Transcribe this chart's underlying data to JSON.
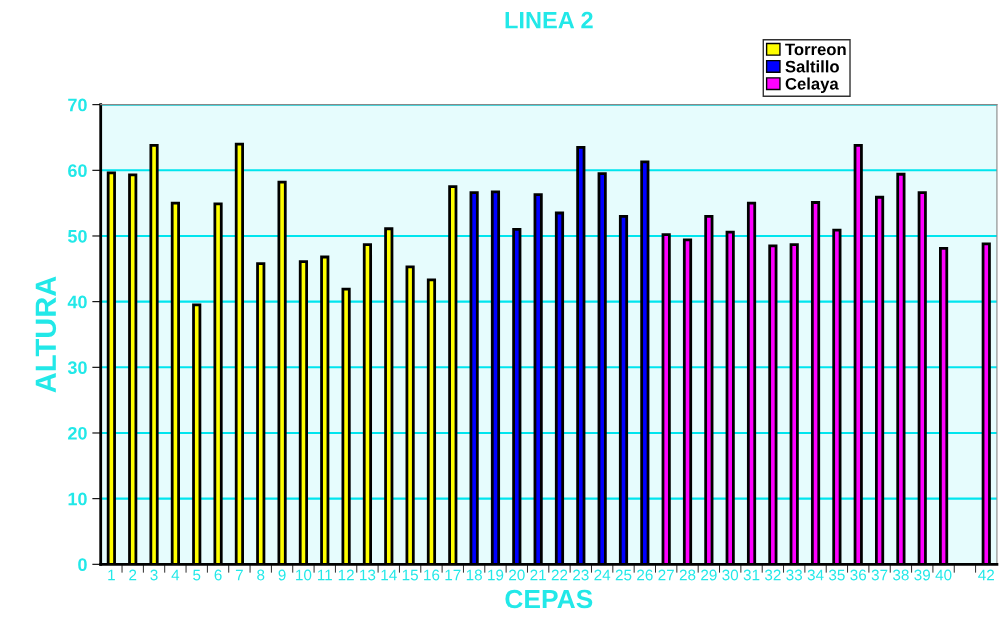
{
  "chart_data": {
    "type": "bar",
    "title": "LINEA 2",
    "xlabel": "CEPAS",
    "ylabel": "ALTURA",
    "categories": [
      "1",
      "2",
      "3",
      "4",
      "5",
      "6",
      "7",
      "8",
      "9",
      "10",
      "11",
      "12",
      "13",
      "14",
      "15",
      "16",
      "17",
      "18",
      "19",
      "20",
      "21",
      "22",
      "23",
      "24",
      "25",
      "26",
      "27",
      "28",
      "29",
      "30",
      "31",
      "32",
      "33",
      "34",
      "35",
      "36",
      "37",
      "38",
      "39",
      "40",
      null,
      "42"
    ],
    "series": [
      {
        "name": "Torreon",
        "color": "#ffff00",
        "values": [
          59.6,
          59.3,
          63.8,
          55,
          39.5,
          54.9,
          64,
          45.8,
          58.2,
          46.1,
          46.8,
          41.9,
          48.7,
          51.1,
          45.3,
          43.3,
          57.5,
          null,
          null,
          null,
          null,
          null,
          null,
          null,
          null,
          null,
          null,
          null,
          null,
          null,
          null,
          null,
          null,
          null,
          null,
          null,
          null,
          null,
          null,
          null,
          null,
          null
        ]
      },
      {
        "name": "Saltillo",
        "color": "#0000ff",
        "values": [
          null,
          null,
          null,
          null,
          null,
          null,
          null,
          null,
          null,
          null,
          null,
          null,
          null,
          null,
          null,
          null,
          null,
          56.6,
          56.7,
          51,
          56.3,
          53.5,
          63.5,
          59.5,
          53,
          61.3,
          null,
          null,
          null,
          null,
          null,
          null,
          null,
          null,
          null,
          null,
          null,
          null,
          null,
          null,
          null,
          null
        ]
      },
      {
        "name": "Celaya",
        "color": "#ff00ff",
        "values": [
          null,
          null,
          null,
          null,
          null,
          null,
          null,
          null,
          null,
          null,
          null,
          null,
          null,
          null,
          null,
          null,
          null,
          null,
          null,
          null,
          null,
          null,
          null,
          null,
          null,
          null,
          50.2,
          49.4,
          53,
          50.6,
          55,
          48.5,
          48.7,
          55.1,
          50.9,
          63.8,
          55.9,
          59.4,
          56.6,
          48.1,
          null,
          48.8
        ]
      }
    ],
    "ylim": [
      0,
      70
    ],
    "yticks": [
      0,
      10,
      20,
      30,
      40,
      50,
      60,
      70
    ],
    "grid": "y",
    "legend": "top right"
  }
}
